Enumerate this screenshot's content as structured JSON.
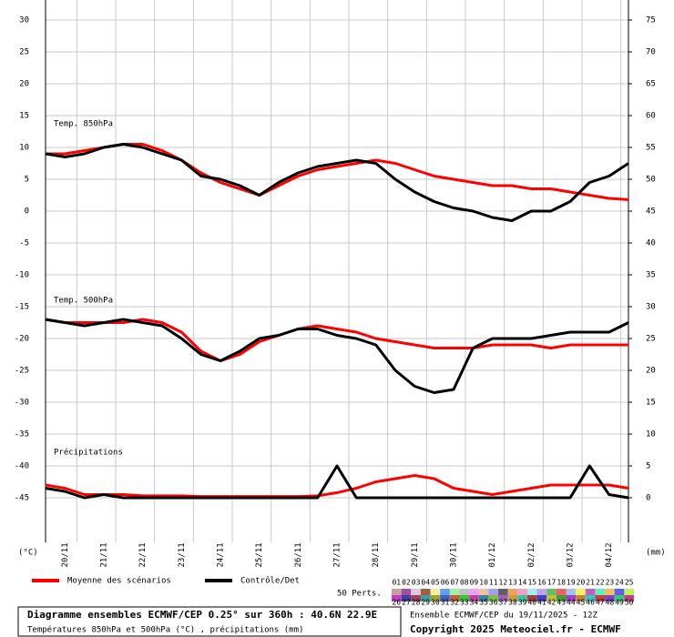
{
  "chart_data": {
    "type": "line",
    "title": "Diagramme ensembles ECMWF/CEP 0.25° sur 360h : 40.6N 22.9E",
    "subtitle": "Températures 850hPa et 500hPa (°C) , précipitations (mm)",
    "run_label": "Ensemble ECMWF/CEP du 19/11/2025 - 12Z",
    "copyright": "Copyright 2025 Meteociel.fr - ECMWF",
    "y_unit": "(°C)",
    "y2_unit": "(mm)",
    "panel_labels": [
      "Temp. 850hPa",
      "Temp. 500hPa",
      "Précipitations"
    ],
    "categories": [
      null,
      "20/11",
      null,
      "21/11",
      null,
      "22/11",
      null,
      "23/11",
      null,
      "24/11",
      null,
      "25/11",
      null,
      "26/11",
      null,
      "27/11",
      null,
      "28/11",
      null,
      "29/11",
      null,
      "30/11",
      null,
      "01/12",
      null,
      "02/12",
      null,
      "03/12",
      null,
      "04/12",
      null
    ],
    "ylim": [
      -52,
      33
    ],
    "yticks": [
      30,
      25,
      20,
      15,
      10,
      5,
      0,
      -5,
      -10,
      -15,
      -20,
      -25,
      -30,
      -35,
      -40,
      -45
    ],
    "y2lim": [
      -7,
      78
    ],
    "y2ticks": [
      75,
      70,
      65,
      60,
      55,
      50,
      45,
      40,
      35,
      30,
      25,
      20,
      15,
      10,
      5,
      0
    ],
    "grid": true,
    "legend": [
      {
        "name": "Moyenne des scénarios",
        "color": "#ff0000"
      },
      {
        "name": "Contrôle/Det",
        "color": "#000000"
      }
    ],
    "series": [
      {
        "color": "#ff0000",
        "values": [
          9,
          9,
          9.5,
          10,
          10.5,
          10.5,
          9.5,
          8,
          6,
          4.5,
          3.5,
          2.5,
          4,
          5.5,
          6.5,
          7,
          7.5,
          8,
          7.5,
          6.5,
          5.5,
          5,
          4.5,
          4,
          4,
          3.5,
          3.5,
          3,
          2.5,
          2,
          1.8
        ]
      },
      {
        "color": "#000000",
        "values": [
          9,
          8.5,
          9,
          10,
          10.5,
          10,
          9,
          8,
          5.5,
          5,
          4,
          2.5,
          4.5,
          6,
          7,
          7.5,
          8,
          7.5,
          5,
          3,
          1.5,
          0.5,
          0,
          -1,
          -1.5,
          0,
          0,
          1.5,
          4.5,
          5.5,
          7.5
        ]
      },
      {
        "color": "#ff0000",
        "values": [
          -17,
          -17.5,
          -17.5,
          -17.5,
          -17.5,
          -17,
          -17.5,
          -19,
          -22,
          -23.5,
          -22.5,
          -20.5,
          -19.5,
          -18.5,
          -18,
          -18.5,
          -19,
          -20,
          -20.5,
          -21,
          -21.5,
          -21.5,
          -21.5,
          -21,
          -21,
          -21,
          -21.5,
          -21,
          -21,
          -21,
          -21
        ]
      },
      {
        "color": "#000000",
        "values": [
          -17,
          -17.5,
          -18,
          -17.5,
          -17,
          -17.5,
          -18,
          -20,
          -22.5,
          -23.5,
          -22,
          -20,
          -19.5,
          -18.5,
          -18.5,
          -19.5,
          -20,
          -21,
          -25,
          -27.5,
          -28.5,
          -28,
          -21.5,
          -20,
          -20,
          -20,
          -19.5,
          -19,
          -19,
          -19,
          -17.5
        ]
      },
      {
        "color": "#ff0000",
        "axis": "y2",
        "values": [
          2,
          1.5,
          0.5,
          0.5,
          0.5,
          0.3,
          0.3,
          0.3,
          0.2,
          0.2,
          0.2,
          0.2,
          0.2,
          0.2,
          0.3,
          0.8,
          1.5,
          2.5,
          3,
          3.5,
          3,
          1.5,
          1,
          0.5,
          1,
          1.5,
          2,
          2,
          2,
          2,
          1.5
        ]
      },
      {
        "color": "#000000",
        "axis": "y2",
        "values": [
          1.5,
          1,
          0,
          0.5,
          0,
          0,
          0,
          0,
          0,
          0,
          0,
          0,
          0,
          0,
          0,
          5,
          0,
          0,
          0,
          0,
          0,
          0,
          0,
          0,
          0,
          0,
          0,
          0,
          5,
          0.5,
          0
        ]
      }
    ],
    "perturbations_label": "50 Perts.",
    "perturbations": [
      {
        "name": "01",
        "color": "#c8a0a0"
      },
      {
        "name": "02",
        "color": "#a050a0"
      },
      {
        "name": "03",
        "color": "#e0c8e0"
      },
      {
        "name": "04",
        "color": "#a06040"
      },
      {
        "name": "05",
        "color": "#f0f0a0"
      },
      {
        "name": "06",
        "color": "#60a0f0"
      },
      {
        "name": "07",
        "color": "#a0f0a0"
      },
      {
        "name": "08",
        "color": "#c0c0c0"
      },
      {
        "name": "09",
        "color": "#f0a0f0"
      },
      {
        "name": "10",
        "color": "#f0c0a0"
      },
      {
        "name": "11",
        "color": "#a0a0f0"
      },
      {
        "name": "12",
        "color": "#606060"
      },
      {
        "name": "13",
        "color": "#f0a060"
      },
      {
        "name": "14",
        "color": "#f0a0c0"
      },
      {
        "name": "15",
        "color": "#a0f0f0"
      },
      {
        "name": "16",
        "color": "#c0a0f0"
      },
      {
        "name": "17",
        "color": "#60c060"
      },
      {
        "name": "18",
        "color": "#f06060"
      },
      {
        "name": "19",
        "color": "#a0c0f0"
      },
      {
        "name": "20",
        "color": "#f0f060"
      },
      {
        "name": "21",
        "color": "#c060c0"
      },
      {
        "name": "22",
        "color": "#60f0c0"
      },
      {
        "name": "23",
        "color": "#f0c060"
      },
      {
        "name": "24",
        "color": "#6060f0"
      },
      {
        "name": "25",
        "color": "#c0f060"
      },
      {
        "name": "26",
        "color": "#c040c0"
      },
      {
        "name": "27",
        "color": "#4040a0"
      },
      {
        "name": "28",
        "color": "#a04060"
      },
      {
        "name": "29",
        "color": "#40a0a0"
      },
      {
        "name": "30",
        "color": "#a0a040"
      },
      {
        "name": "31",
        "color": "#4060c0"
      },
      {
        "name": "32",
        "color": "#c06040"
      },
      {
        "name": "33",
        "color": "#40c040"
      },
      {
        "name": "34",
        "color": "#c040a0"
      },
      {
        "name": "35",
        "color": "#4080a0"
      },
      {
        "name": "36",
        "color": "#80c040"
      },
      {
        "name": "37",
        "color": "#a060c0"
      },
      {
        "name": "38",
        "color": "#c0a040"
      },
      {
        "name": "39",
        "color": "#40c0a0"
      },
      {
        "name": "40",
        "color": "#a04040"
      },
      {
        "name": "41",
        "color": "#4040c0"
      },
      {
        "name": "42",
        "color": "#c0c040"
      },
      {
        "name": "43",
        "color": "#40a040"
      },
      {
        "name": "44",
        "color": "#a040c0"
      },
      {
        "name": "45",
        "color": "#c08040"
      },
      {
        "name": "46",
        "color": "#40c0c0"
      },
      {
        "name": "47",
        "color": "#c04040"
      },
      {
        "name": "48",
        "color": "#8040c0"
      },
      {
        "name": "49",
        "color": "#40c080"
      },
      {
        "name": "50",
        "color": "#c04080"
      }
    ]
  }
}
